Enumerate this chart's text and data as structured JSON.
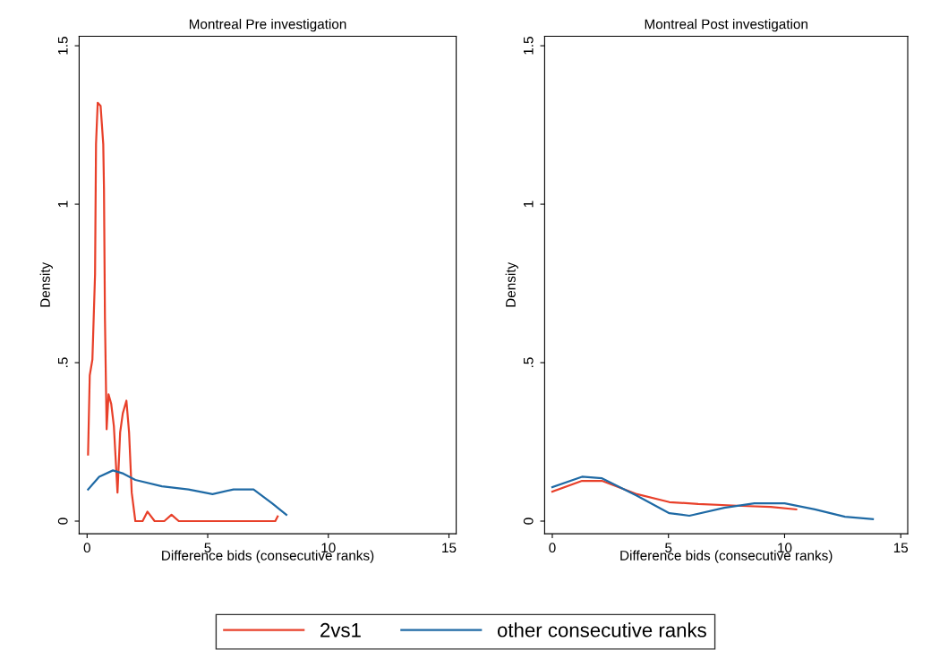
{
  "chart_data": [
    {
      "type": "line",
      "title": "Montreal Pre investigation",
      "xlabel": "Difference bids (consecutive ranks)",
      "ylabel": "Density",
      "xlim": [
        -0.33,
        15.3
      ],
      "ylim": [
        -0.04,
        1.53
      ],
      "xticks": [
        0,
        5,
        10,
        15
      ],
      "yticks": [
        {
          "value": 0,
          "label": "0"
        },
        {
          "value": 0.5,
          "label": ".5"
        },
        {
          "value": 1,
          "label": "1"
        },
        {
          "value": 1.5,
          "label": "1.5"
        }
      ],
      "grid": false,
      "legend": "bottom",
      "series": [
        {
          "name": "2vs1",
          "color": "#e8402a",
          "x": [
            0.04,
            0.11,
            0.22,
            0.33,
            0.37,
            0.44,
            0.56,
            0.67,
            0.7,
            0.74,
            0.81,
            0.89,
            1.0,
            1.11,
            1.26,
            1.37,
            1.48,
            1.63,
            1.74,
            1.85,
            2.0,
            2.3,
            2.5,
            2.8,
            3.2,
            3.5,
            3.8,
            5.0,
            7.8,
            7.9
          ],
          "values": [
            0.21,
            0.46,
            0.51,
            0.78,
            1.19,
            1.32,
            1.31,
            1.19,
            1.05,
            0.64,
            0.29,
            0.4,
            0.37,
            0.3,
            0.09,
            0.28,
            0.34,
            0.38,
            0.28,
            0.09,
            0.0,
            0.0,
            0.03,
            0.0,
            0.0,
            0.02,
            0.0,
            0.0,
            0.0,
            0.015
          ]
        },
        {
          "name": "other consecutive ranks",
          "color": "#1f6aa5",
          "x": [
            0.04,
            0.5,
            1.07,
            1.5,
            2.0,
            3.1,
            4.2,
            5.2,
            6.07,
            6.9,
            7.67,
            8.26
          ],
          "values": [
            0.1,
            0.14,
            0.16,
            0.15,
            0.13,
            0.11,
            0.1,
            0.085,
            0.1,
            0.1,
            0.056,
            0.02
          ]
        }
      ]
    },
    {
      "type": "line",
      "title": "Montreal Post investigation",
      "xlabel": "Difference bids (consecutive ranks)",
      "ylabel": "Density",
      "xlim": [
        -0.33,
        15.3
      ],
      "ylim": [
        -0.04,
        1.53
      ],
      "xticks": [
        0,
        5,
        10,
        15
      ],
      "yticks": [
        {
          "value": 0,
          "label": "0"
        },
        {
          "value": 0.5,
          "label": ".5"
        },
        {
          "value": 1,
          "label": "1"
        },
        {
          "value": 1.5,
          "label": "1.5"
        }
      ],
      "grid": false,
      "series": [
        {
          "name": "2vs1",
          "color": "#e8402a",
          "x": [
            0,
            1.28,
            2.14,
            3.65,
            5.04,
            6.28,
            8.16,
            9.4,
            10.5
          ],
          "values": [
            0.093,
            0.127,
            0.127,
            0.085,
            0.06,
            0.054,
            0.048,
            0.045,
            0.037
          ]
        },
        {
          "name": "other consecutive ranks",
          "color": "#1f6aa5",
          "x": [
            0,
            1.28,
            2.14,
            3.65,
            5.04,
            5.9,
            7.4,
            8.7,
            10.0,
            11.3,
            12.6,
            13.8
          ],
          "values": [
            0.107,
            0.14,
            0.135,
            0.08,
            0.025,
            0.017,
            0.042,
            0.056,
            0.056,
            0.037,
            0.014,
            0.006
          ]
        }
      ]
    }
  ]
}
